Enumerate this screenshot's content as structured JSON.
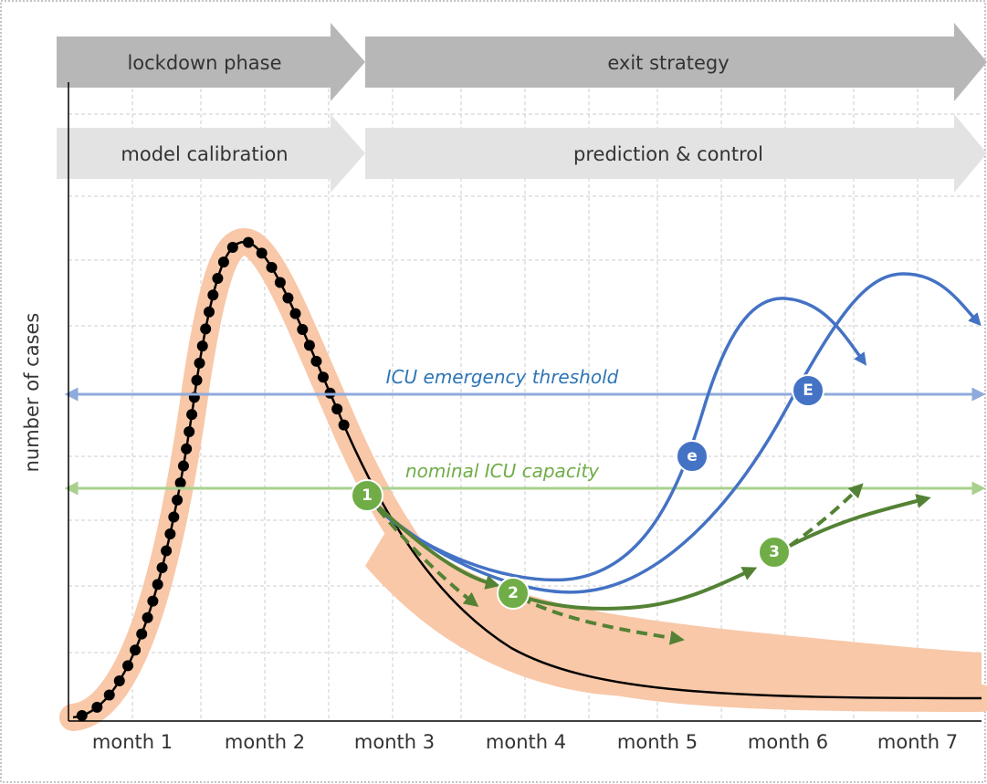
{
  "phases": {
    "top": [
      "lockdown phase",
      "exit strategy"
    ],
    "bottom": [
      "model calibration",
      "prediction & control"
    ]
  },
  "y_axis_label": "number of cases",
  "x_labels": [
    "month 1",
    "month 2",
    "month 3",
    "month 4",
    "month 5",
    "month 6",
    "month 7"
  ],
  "thresholds": {
    "emergency": "ICU emergency threshold",
    "nominal": "nominal ICU capacity"
  },
  "markers": {
    "green": [
      "1",
      "2",
      "3"
    ],
    "blue": [
      "e",
      "E"
    ]
  }
}
